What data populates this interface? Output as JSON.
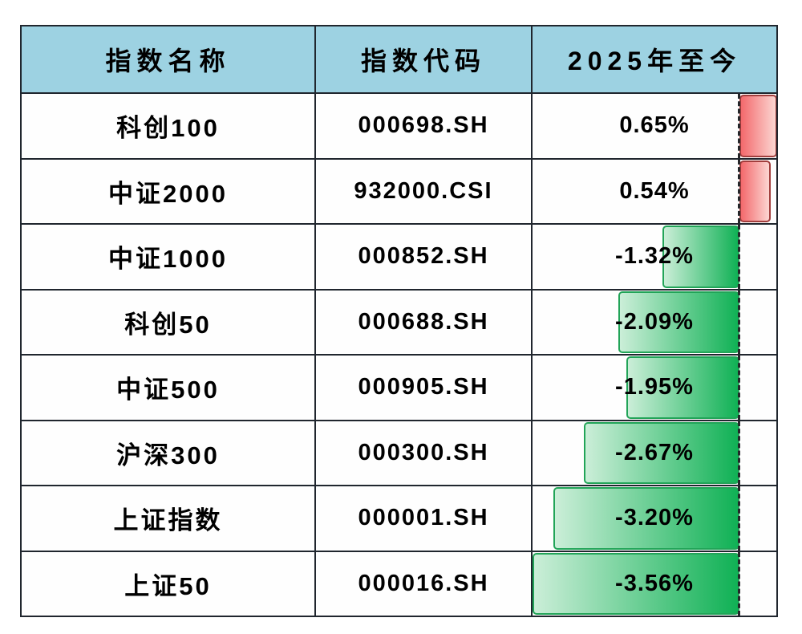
{
  "chart_data": {
    "type": "table",
    "headers": [
      "指数名称",
      "指数代码",
      "2025年至今"
    ],
    "rows": [
      {
        "name": "科创100",
        "code": "000698.SH",
        "change": "0.65%",
        "change_value": 0.65
      },
      {
        "name": "中证2000",
        "code": "932000.CSI",
        "change": "0.54%",
        "change_value": 0.54
      },
      {
        "name": "中证1000",
        "code": "000852.SH",
        "change": "-1.32%",
        "change_value": -1.32
      },
      {
        "name": "科创50",
        "code": "000688.SH",
        "change": "-2.09%",
        "change_value": -2.09
      },
      {
        "name": "中证500",
        "code": "000905.SH",
        "change": "-1.95%",
        "change_value": -1.95
      },
      {
        "name": "沪深300",
        "code": "000300.SH",
        "change": "-2.67%",
        "change_value": -2.67
      },
      {
        "name": "上证指数",
        "code": "000001.SH",
        "change": "-3.20%",
        "change_value": -3.2
      },
      {
        "name": "上证50",
        "code": "000016.SH",
        "change": "-3.56%",
        "change_value": -3.56
      }
    ],
    "databar": {
      "scale_min": -3.56,
      "scale_max": 0.65,
      "positive_gradient_from": "#f3696c",
      "positive_gradient_to": "#fcd6d2",
      "positive_border": "#a23e3d",
      "negative_gradient_from": "#cbeed8",
      "negative_gradient_to": "#10b155",
      "negative_border": "#22a458",
      "axis_line_color": "#26262a"
    }
  },
  "colors": {
    "page_bg": "#ffffff",
    "header_bg": "#9dd2e2",
    "table_border": "#20262e",
    "text": "#000000"
  }
}
